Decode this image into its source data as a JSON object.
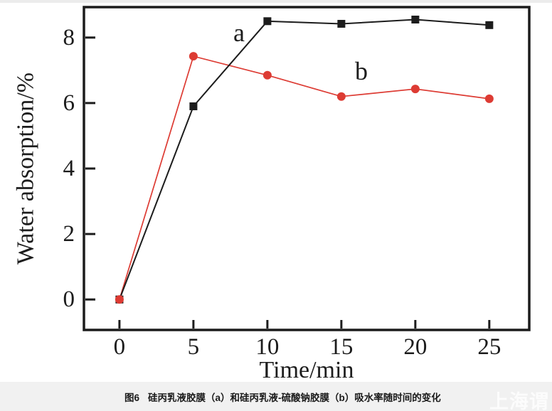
{
  "caption": {
    "label": "图6",
    "text": "硅丙乳液胶膜（a）和硅丙乳液-硫酸钠胶膜（b）吸水率随时间的变化"
  },
  "watermark": {
    "text": "上海谓"
  },
  "colors": {
    "series_a": "#1c1c1c",
    "series_b": "#dd3b33",
    "axis": "#1c1c1c",
    "caption_band": "#f1f1f1",
    "watermark": "#ffffff"
  },
  "chart_data": {
    "type": "line",
    "x": [
      0,
      5,
      10,
      15,
      20,
      25
    ],
    "series": [
      {
        "name": "a",
        "marker": "square",
        "color": "#1c1c1c",
        "values": [
          0,
          5.9,
          8.5,
          8.42,
          8.55,
          8.38
        ],
        "label_x": 8.08,
        "label_y": 7.89
      },
      {
        "name": "b",
        "marker": "circle",
        "color": "#dd3b33",
        "values": [
          0,
          7.43,
          6.85,
          6.2,
          6.43,
          6.13
        ],
        "label_x": 16.35,
        "label_y": 6.72
      }
    ],
    "title": "",
    "xlabel": "Time/min",
    "ylabel": "Water absorption/%",
    "xlim": [
      -2.4,
      27.7
    ],
    "ylim": [
      -0.93,
      8.93
    ],
    "xticks": [
      0,
      5,
      10,
      15,
      20,
      25
    ],
    "yticks": [
      0,
      2,
      4,
      6,
      8
    ],
    "grid": false,
    "legend": "none",
    "tick_direction": "in"
  }
}
